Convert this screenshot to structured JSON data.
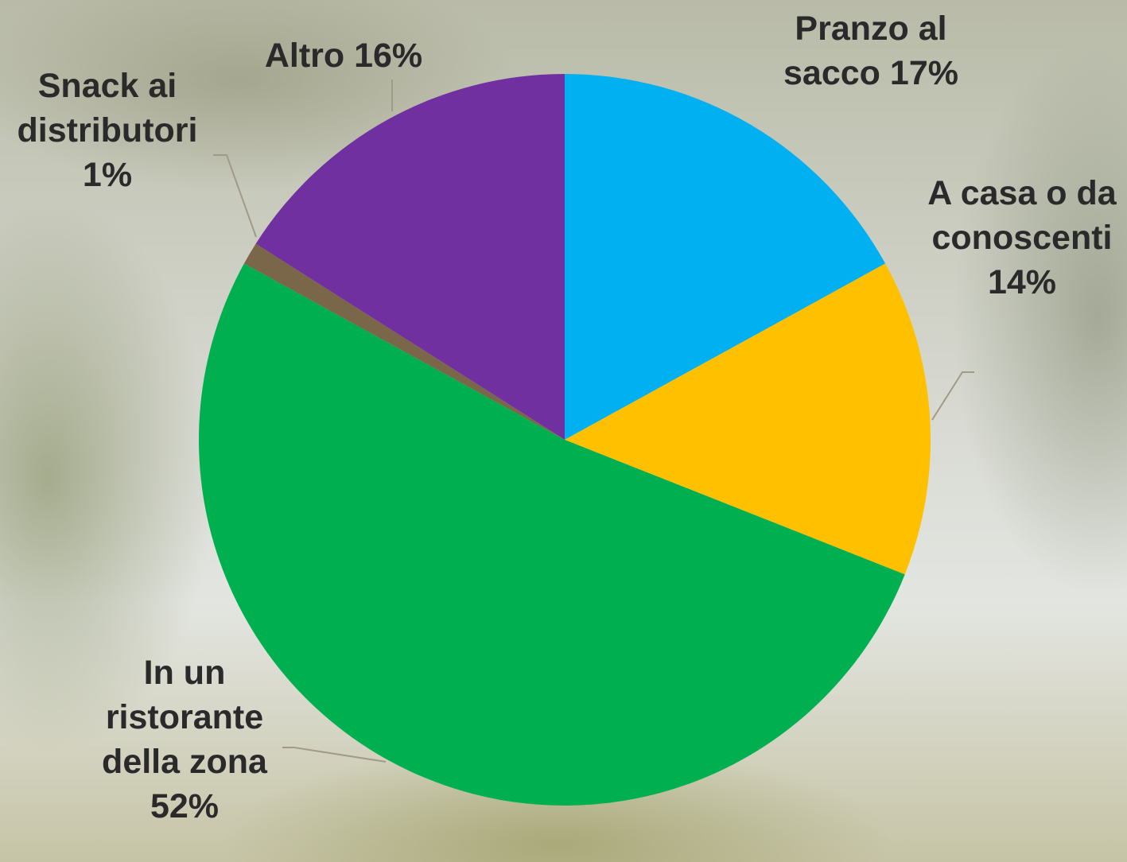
{
  "chart_data": {
    "type": "pie",
    "categories": [
      "Pranzo al sacco",
      "A casa o da conoscenti",
      "In un ristorante della zona",
      "Snack ai distributori",
      "Altro"
    ],
    "values": [
      17,
      14,
      52,
      1,
      16
    ],
    "value_labels": [
      "17%",
      "14%",
      "52%",
      "1%",
      "16%"
    ],
    "colors": [
      "#00b0f0",
      "#ffc000",
      "#00b050",
      "#7a6648",
      "#7030a0"
    ]
  }
}
